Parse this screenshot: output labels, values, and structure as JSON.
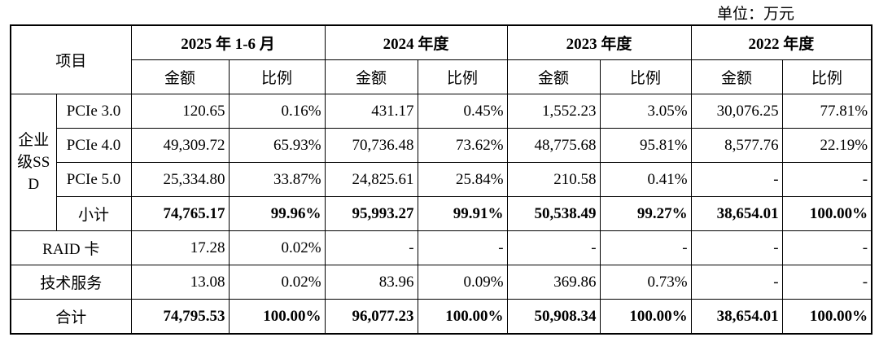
{
  "unit": "单位：万元",
  "table": {
    "item_header": "项目",
    "periods": [
      "2025 年 1-6 月",
      "2024 年度",
      "2023 年度",
      "2022 年度"
    ],
    "subheaders": [
      "金额",
      "比例",
      "金额",
      "比例",
      "金额",
      "比例",
      "金额",
      "比例"
    ],
    "ssd_group": {
      "label": "企业级SSD",
      "rows": [
        {
          "label": "PCIe 3.0",
          "cells": [
            "120.65",
            "0.16%",
            "431.17",
            "0.45%",
            "1,552.23",
            "3.05%",
            "30,076.25",
            "77.81%"
          ]
        },
        {
          "label": "PCIe 4.0",
          "cells": [
            "49,309.72",
            "65.93%",
            "70,736.48",
            "73.62%",
            "48,775.68",
            "95.81%",
            "8,577.76",
            "22.19%"
          ]
        },
        {
          "label": "PCIe 5.0",
          "cells": [
            "25,334.80",
            "33.87%",
            "24,825.61",
            "25.84%",
            "210.58",
            "0.41%",
            "-",
            "-"
          ]
        },
        {
          "label": "小计",
          "cells": [
            "74,765.17",
            "99.96%",
            "95,993.27",
            "99.91%",
            "50,538.49",
            "99.27%",
            "38,654.01",
            "100.00%"
          ]
        }
      ]
    },
    "rows": [
      {
        "label": "RAID 卡",
        "cells": [
          "17.28",
          "0.02%",
          "-",
          "-",
          "-",
          "-",
          "-",
          "-"
        ]
      },
      {
        "label": "技术服务",
        "cells": [
          "13.08",
          "0.02%",
          "83.96",
          "0.09%",
          "369.86",
          "0.73%",
          "-",
          "-"
        ]
      },
      {
        "label": "合计",
        "cells": [
          "74,795.53",
          "100.00%",
          "96,077.23",
          "100.00%",
          "50,908.34",
          "100.00%",
          "38,654.01",
          "100.00%"
        ]
      }
    ]
  }
}
